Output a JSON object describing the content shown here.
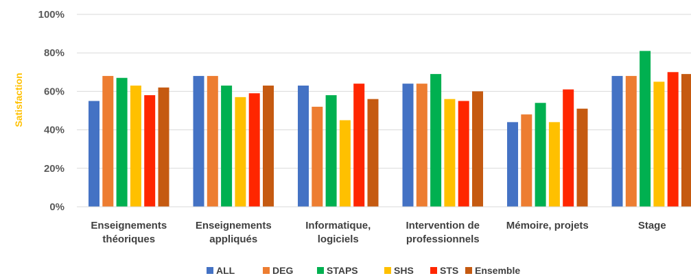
{
  "chart_data": {
    "type": "bar",
    "title": "",
    "xlabel": "",
    "ylabel": "Satisfaction",
    "ylim": [
      0,
      100
    ],
    "yticks": [
      "0%",
      "20%",
      "40%",
      "60%",
      "80%",
      "100%"
    ],
    "grid": true,
    "legend_position": "bottom",
    "categories": [
      "Enseignements théoriques",
      "Enseignements appliqués",
      "Informatique, logiciels",
      "Intervention de professionnels",
      "Mémoire, projets",
      "Stage"
    ],
    "series": [
      {
        "name": "ALL",
        "color": "#4472C4",
        "values": [
          55,
          68,
          63,
          64,
          44,
          68
        ]
      },
      {
        "name": "DEG",
        "color": "#ED7D31",
        "values": [
          68,
          68,
          52,
          64,
          48,
          68
        ]
      },
      {
        "name": "STAPS",
        "color": "#00B050",
        "values": [
          67,
          63,
          58,
          69,
          54,
          81
        ]
      },
      {
        "name": "SHS",
        "color": "#FFC000",
        "values": [
          63,
          57,
          45,
          56,
          44,
          65
        ]
      },
      {
        "name": "STS",
        "color": "#FF2600",
        "values": [
          58,
          59,
          64,
          55,
          61,
          70
        ]
      },
      {
        "name": "Ensemble",
        "color": "#C55A11",
        "values": [
          62,
          63,
          56,
          60,
          51,
          69
        ]
      }
    ]
  }
}
